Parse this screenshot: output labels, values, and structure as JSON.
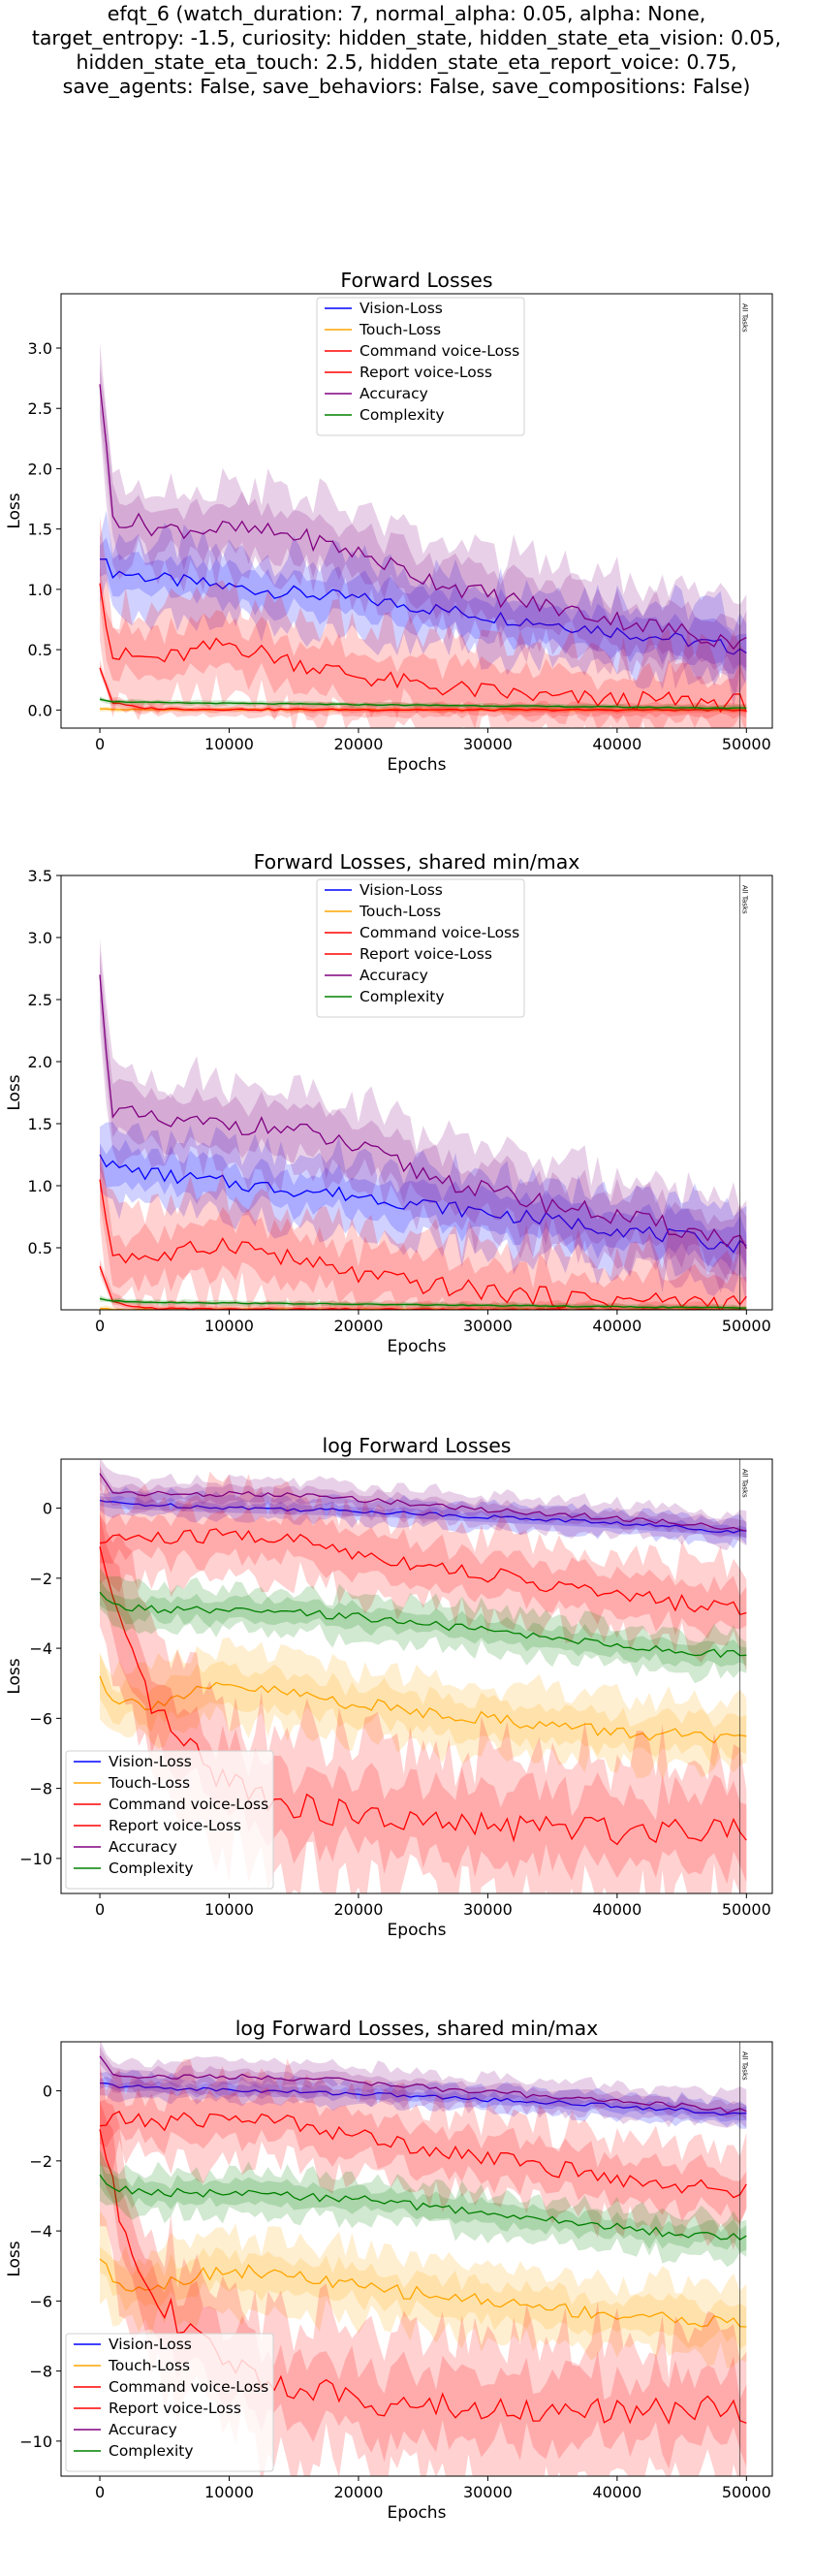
{
  "figure": {
    "suptitle_lines": [
      "efqt_6 (watch_duration: 7, normal_alpha: 0.05, alpha: None,",
      "target_entropy: -1.5, curiosity: hidden_state, hidden_state_eta_vision: 0.05,",
      "hidden_state_eta_touch: 2.5, hidden_state_eta_report_voice: 0.75,",
      "save_agents: False, save_behaviors: False, save_compositions: False)"
    ]
  },
  "chart_data": [
    {
      "type": "line",
      "title": "Forward Losses",
      "xlabel": "Epochs",
      "ylabel": "Loss",
      "xlim": [
        -3000,
        52000
      ],
      "ylim": [
        -0.15,
        3.45
      ],
      "xticks": [
        0,
        10000,
        20000,
        30000,
        40000,
        50000
      ],
      "yticks": [
        0.0,
        0.5,
        1.0,
        1.5,
        2.0,
        2.5,
        3.0
      ],
      "ytick_labels": [
        "0.0",
        "0.5",
        "1.0",
        "1.5",
        "2.0",
        "2.5",
        "3.0"
      ],
      "grid": false,
      "legend_location": "upper center",
      "vline": {
        "x": 49500,
        "label": "All Tasks"
      },
      "series": [
        {
          "name": "Vision-Loss",
          "color": "#0000ff",
          "x": [
            0,
            1000,
            5000,
            10000,
            15000,
            20000,
            25000,
            30000,
            35000,
            40000,
            45000,
            50000
          ],
          "y": [
            1.25,
            1.15,
            1.08,
            1.02,
            0.97,
            0.92,
            0.85,
            0.78,
            0.72,
            0.65,
            0.58,
            0.5
          ],
          "band": [
            0.15,
            0.3
          ]
        },
        {
          "name": "Touch-Loss",
          "color": "#ffa500",
          "x": [
            0,
            1000,
            5000,
            10000,
            20000,
            30000,
            40000,
            50000
          ],
          "y": [
            0.01,
            0.004,
            0.003,
            0.003,
            0.003,
            0.002,
            0.002,
            0.002
          ],
          "band": [
            0.01,
            0.02
          ]
        },
        {
          "name": "Command voice-Loss",
          "color": "#ff0000",
          "x": [
            0,
            1000,
            5000,
            10000,
            15000,
            20000,
            25000,
            30000,
            35000,
            40000,
            45000,
            50000
          ],
          "y": [
            1.05,
            0.45,
            0.42,
            0.55,
            0.4,
            0.28,
            0.2,
            0.15,
            0.1,
            0.08,
            0.07,
            0.06
          ],
          "band": [
            0.2,
            0.4
          ]
        },
        {
          "name": "Report voice-Loss",
          "color": "#ff0000",
          "x": [
            0,
            1000,
            3000,
            5000,
            10000,
            20000,
            30000,
            40000,
            50000
          ],
          "y": [
            0.35,
            0.06,
            0.02,
            0.01,
            0.005,
            0.002,
            0.001,
            0.0005,
            0.0002
          ],
          "band": [
            0.02,
            0.05
          ]
        },
        {
          "name": "Accuracy",
          "color": "#800080",
          "x": [
            0,
            1000,
            5000,
            10000,
            15000,
            20000,
            25000,
            30000,
            35000,
            40000,
            45000,
            50000
          ],
          "y": [
            2.7,
            1.6,
            1.5,
            1.5,
            1.45,
            1.3,
            1.1,
            0.95,
            0.85,
            0.75,
            0.65,
            0.55
          ],
          "band": [
            0.2,
            0.35
          ]
        },
        {
          "name": "Complexity",
          "color": "#008000",
          "x": [
            0,
            1000,
            5000,
            10000,
            20000,
            30000,
            40000,
            50000
          ],
          "y": [
            0.09,
            0.07,
            0.06,
            0.055,
            0.045,
            0.035,
            0.025,
            0.015
          ],
          "band": [
            0.01,
            0.02
          ]
        }
      ]
    },
    {
      "type": "line",
      "title": "Forward Losses, shared min/max",
      "xlabel": "Epochs",
      "ylabel": "Loss",
      "xlim": [
        -3000,
        52000
      ],
      "ylim": [
        0.0,
        3.5
      ],
      "xticks": [
        0,
        10000,
        20000,
        30000,
        40000,
        50000
      ],
      "yticks": [
        0.5,
        1.0,
        1.5,
        2.0,
        2.5,
        3.0,
        3.5
      ],
      "ytick_labels": [
        "0.5",
        "1.0",
        "1.5",
        "2.0",
        "2.5",
        "3.0",
        "3.5"
      ],
      "grid": false,
      "legend_location": "upper center",
      "vline": {
        "x": 49500,
        "label": "All Tasks"
      },
      "series": [
        {
          "name": "Vision-Loss",
          "color": "#0000ff",
          "x": [
            0,
            1000,
            5000,
            10000,
            15000,
            20000,
            25000,
            30000,
            35000,
            40000,
            45000,
            50000
          ],
          "y": [
            1.25,
            1.15,
            1.08,
            1.02,
            0.97,
            0.92,
            0.85,
            0.78,
            0.72,
            0.65,
            0.58,
            0.5
          ],
          "band": [
            0.15,
            0.3
          ]
        },
        {
          "name": "Touch-Loss",
          "color": "#ffa500",
          "x": [
            0,
            1000,
            5000,
            10000,
            20000,
            30000,
            40000,
            50000
          ],
          "y": [
            0.01,
            0.004,
            0.003,
            0.003,
            0.003,
            0.002,
            0.002,
            0.002
          ],
          "band": [
            0.01,
            0.02
          ]
        },
        {
          "name": "Command voice-Loss",
          "color": "#ff0000",
          "x": [
            0,
            1000,
            5000,
            10000,
            15000,
            20000,
            25000,
            30000,
            35000,
            40000,
            45000,
            50000
          ],
          "y": [
            1.05,
            0.45,
            0.42,
            0.55,
            0.4,
            0.28,
            0.2,
            0.15,
            0.1,
            0.08,
            0.07,
            0.06
          ],
          "band": [
            0.2,
            0.4
          ]
        },
        {
          "name": "Report voice-Loss",
          "color": "#ff0000",
          "x": [
            0,
            1000,
            3000,
            5000,
            10000,
            20000,
            30000,
            40000,
            50000
          ],
          "y": [
            0.35,
            0.06,
            0.02,
            0.01,
            0.005,
            0.002,
            0.001,
            0.0005,
            0.0002
          ],
          "band": [
            0.02,
            0.05
          ]
        },
        {
          "name": "Accuracy",
          "color": "#800080",
          "x": [
            0,
            1000,
            5000,
            10000,
            15000,
            20000,
            25000,
            30000,
            35000,
            40000,
            45000,
            50000
          ],
          "y": [
            2.7,
            1.6,
            1.5,
            1.5,
            1.45,
            1.3,
            1.1,
            0.95,
            0.85,
            0.75,
            0.65,
            0.55
          ],
          "band": [
            0.2,
            0.35
          ]
        },
        {
          "name": "Complexity",
          "color": "#008000",
          "x": [
            0,
            1000,
            5000,
            10000,
            20000,
            30000,
            40000,
            50000
          ],
          "y": [
            0.09,
            0.07,
            0.06,
            0.055,
            0.045,
            0.035,
            0.025,
            0.015
          ],
          "band": [
            0.01,
            0.02
          ]
        }
      ]
    },
    {
      "type": "line",
      "title": "log Forward Losses",
      "xlabel": "Epochs",
      "ylabel": "Loss",
      "xlim": [
        -3000,
        52000
      ],
      "ylim": [
        -11.0,
        1.4
      ],
      "xticks": [
        0,
        10000,
        20000,
        30000,
        40000,
        50000
      ],
      "yticks": [
        -10,
        -8,
        -6,
        -4,
        -2,
        0
      ],
      "ytick_labels": [
        "−10",
        "−8",
        "−6",
        "−4",
        "−2",
        "0"
      ],
      "grid": false,
      "legend_location": "lower left",
      "vline": {
        "x": 49500,
        "label": "All Tasks"
      },
      "series": [
        {
          "name": "Vision-Loss",
          "color": "#0000ff",
          "x": [
            0,
            1000,
            5000,
            10000,
            15000,
            20000,
            25000,
            30000,
            35000,
            40000,
            45000,
            50000
          ],
          "y": [
            0.22,
            0.14,
            0.08,
            0.02,
            -0.03,
            -0.08,
            -0.16,
            -0.25,
            -0.33,
            -0.43,
            -0.55,
            -0.69
          ],
          "band": [
            0.15,
            0.35
          ]
        },
        {
          "name": "Touch-Loss",
          "color": "#ffa500",
          "x": [
            0,
            1000,
            3000,
            5000,
            7000,
            10000,
            15000,
            20000,
            25000,
            30000,
            35000,
            40000,
            45000,
            50000
          ],
          "y": [
            -4.8,
            -5.4,
            -5.6,
            -5.5,
            -5.3,
            -5.1,
            -5.3,
            -5.6,
            -5.8,
            -6.0,
            -6.2,
            -6.4,
            -6.5,
            -6.7
          ],
          "band": [
            0.5,
            1.0
          ]
        },
        {
          "name": "Command voice-Loss",
          "color": "#ff0000",
          "x": [
            0,
            1000,
            5000,
            10000,
            15000,
            20000,
            25000,
            30000,
            35000,
            40000,
            45000,
            50000
          ],
          "y": [
            -1.0,
            -0.8,
            -0.9,
            -0.75,
            -0.9,
            -1.3,
            -1.6,
            -1.9,
            -2.2,
            -2.5,
            -2.7,
            -2.9
          ],
          "band": [
            0.6,
            1.2
          ]
        },
        {
          "name": "Report voice-Loss",
          "color": "#ff0000",
          "x": [
            0,
            1000,
            2000,
            4000,
            6000,
            8000,
            10000,
            15000,
            20000,
            25000,
            30000,
            35000,
            40000,
            45000,
            50000
          ],
          "y": [
            -1.1,
            -2.8,
            -4.0,
            -5.6,
            -6.6,
            -7.3,
            -7.8,
            -8.5,
            -8.8,
            -9.0,
            -9.1,
            -9.1,
            -9.2,
            -9.1,
            -9.1
          ],
          "band": [
            1.0,
            2.0
          ]
        },
        {
          "name": "Accuracy",
          "color": "#800080",
          "x": [
            0,
            1000,
            5000,
            10000,
            15000,
            20000,
            25000,
            30000,
            35000,
            40000,
            45000,
            50000
          ],
          "y": [
            0.99,
            0.47,
            0.4,
            0.4,
            0.37,
            0.26,
            0.1,
            -0.05,
            -0.16,
            -0.29,
            -0.43,
            -0.6
          ],
          "band": [
            0.2,
            0.45
          ]
        },
        {
          "name": "Complexity",
          "color": "#008000",
          "x": [
            0,
            1000,
            5000,
            10000,
            15000,
            20000,
            25000,
            30000,
            35000,
            40000,
            45000,
            50000
          ],
          "y": [
            -2.4,
            -2.8,
            -2.9,
            -2.95,
            -3.0,
            -3.1,
            -3.3,
            -3.5,
            -3.7,
            -3.9,
            -4.1,
            -4.2
          ],
          "band": [
            0.3,
            0.6
          ]
        }
      ]
    },
    {
      "type": "line",
      "title": "log Forward Losses, shared min/max",
      "xlabel": "Epochs",
      "ylabel": "Loss",
      "xlim": [
        -3000,
        52000
      ],
      "ylim": [
        -11.0,
        1.4
      ],
      "xticks": [
        0,
        10000,
        20000,
        30000,
        40000,
        50000
      ],
      "yticks": [
        -10,
        -8,
        -6,
        -4,
        -2,
        0
      ],
      "ytick_labels": [
        "−10",
        "−8",
        "−6",
        "−4",
        "−2",
        "0"
      ],
      "grid": false,
      "legend_location": "lower left",
      "vline": {
        "x": 49500,
        "label": "All Tasks"
      },
      "series": [
        {
          "name": "Vision-Loss",
          "color": "#0000ff",
          "x": [
            0,
            1000,
            5000,
            10000,
            15000,
            20000,
            25000,
            30000,
            35000,
            40000,
            45000,
            50000
          ],
          "y": [
            0.22,
            0.14,
            0.08,
            0.02,
            -0.03,
            -0.08,
            -0.16,
            -0.25,
            -0.33,
            -0.43,
            -0.55,
            -0.69
          ],
          "band": [
            0.15,
            0.35
          ]
        },
        {
          "name": "Touch-Loss",
          "color": "#ffa500",
          "x": [
            0,
            1000,
            3000,
            5000,
            7000,
            10000,
            15000,
            20000,
            25000,
            30000,
            35000,
            40000,
            45000,
            50000
          ],
          "y": [
            -4.8,
            -5.4,
            -5.6,
            -5.5,
            -5.3,
            -5.1,
            -5.3,
            -5.6,
            -5.8,
            -6.0,
            -6.2,
            -6.4,
            -6.5,
            -6.7
          ],
          "band": [
            0.5,
            1.0
          ]
        },
        {
          "name": "Command voice-Loss",
          "color": "#ff0000",
          "x": [
            0,
            1000,
            5000,
            10000,
            15000,
            20000,
            25000,
            30000,
            35000,
            40000,
            45000,
            50000
          ],
          "y": [
            -1.0,
            -0.8,
            -0.9,
            -0.75,
            -0.9,
            -1.3,
            -1.6,
            -1.9,
            -2.2,
            -2.5,
            -2.7,
            -2.9
          ],
          "band": [
            0.6,
            1.2
          ]
        },
        {
          "name": "Report voice-Loss",
          "color": "#ff0000",
          "x": [
            0,
            1000,
            2000,
            4000,
            6000,
            8000,
            10000,
            15000,
            20000,
            25000,
            30000,
            35000,
            40000,
            45000,
            50000
          ],
          "y": [
            -1.1,
            -2.8,
            -4.0,
            -5.6,
            -6.6,
            -7.3,
            -7.8,
            -8.5,
            -8.8,
            -9.0,
            -9.1,
            -9.1,
            -9.2,
            -9.1,
            -9.1
          ],
          "band": [
            1.0,
            2.0
          ]
        },
        {
          "name": "Accuracy",
          "color": "#800080",
          "x": [
            0,
            1000,
            5000,
            10000,
            15000,
            20000,
            25000,
            30000,
            35000,
            40000,
            45000,
            50000
          ],
          "y": [
            0.99,
            0.47,
            0.4,
            0.4,
            0.37,
            0.26,
            0.1,
            -0.05,
            -0.16,
            -0.29,
            -0.43,
            -0.6
          ],
          "band": [
            0.2,
            0.45
          ]
        },
        {
          "name": "Complexity",
          "color": "#008000",
          "x": [
            0,
            1000,
            5000,
            10000,
            15000,
            20000,
            25000,
            30000,
            35000,
            40000,
            45000,
            50000
          ],
          "y": [
            -2.4,
            -2.8,
            -2.9,
            -2.95,
            -3.0,
            -3.1,
            -3.3,
            -3.5,
            -3.7,
            -3.9,
            -4.1,
            -4.2
          ],
          "band": [
            0.3,
            0.6
          ]
        }
      ]
    }
  ]
}
